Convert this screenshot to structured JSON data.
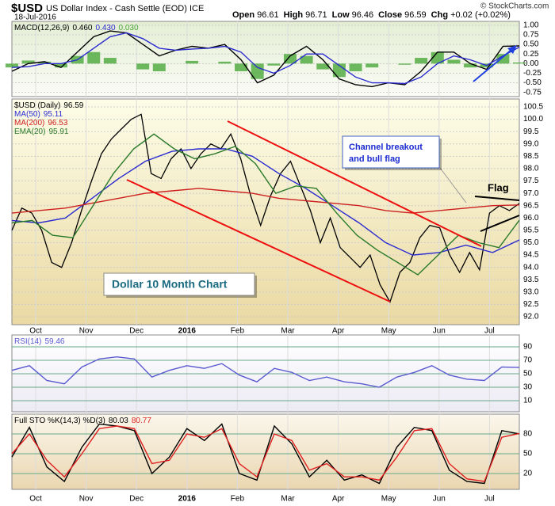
{
  "header": {
    "symbol": "$USD",
    "name": "US Dollar Index - Cash Settle (EOD) ICE",
    "date": "18-Jul-2016",
    "quote": [
      {
        "label": "Open",
        "value": "96.61"
      },
      {
        "label": "High",
        "value": "96.71"
      },
      {
        "label": "Low",
        "value": "96.46"
      },
      {
        "label": "Close",
        "value": "96.59"
      },
      {
        "label": "Chg",
        "value": "+0.02 (+0.02%)"
      }
    ],
    "logo": "© StockCharts.com"
  },
  "x_axis_labels": [
    "Oct",
    "Nov",
    "Dec",
    "2016",
    "Feb",
    "Mar",
    "Apr",
    "May",
    "Jun",
    "Jul"
  ],
  "annotations": {
    "breakout": [
      "Channel breakout",
      "and bull flag"
    ],
    "flag": "Flag",
    "chart_label": "Dollar 10 Month Chart"
  },
  "chart_data": [
    {
      "type": "line",
      "legend": "MACD(12,26,9)",
      "ylim": [
        -0.86,
        1.1
      ],
      "yticks": [
        {
          "value": 1,
          "label": "1.00"
        },
        0.75,
        {
          "value": 0.5,
          "label": "0.50"
        },
        0.25,
        {
          "value": 0,
          "label": "0.00"
        },
        -0.25,
        {
          "value": -0.5,
          "label": "-0.50"
        },
        -0.75
      ],
      "grid": true,
      "series": [
        {
          "name": "0.030",
          "color": "#4aa83a",
          "kind": "bar",
          "values": [
            -0.1,
            0.08,
            0.05,
            -0.1,
            0.2,
            0.3,
            0.15,
            0.0,
            -0.15,
            -0.2,
            0.0,
            0.07,
            0.0,
            0.05,
            -0.2,
            -0.4,
            -0.05,
            0.25,
            0.2,
            -0.15,
            -0.35,
            -0.2,
            -0.1,
            0.0,
            -0.03,
            0.15,
            0.3,
            0.1,
            -0.1,
            -0.1,
            0.25,
            0.03
          ]
        },
        {
          "name": "0.460",
          "color": "#000000",
          "kind": "line",
          "values": [
            -0.2,
            0.0,
            0.05,
            -0.1,
            0.3,
            0.7,
            0.85,
            0.8,
            0.5,
            0.2,
            0.35,
            0.45,
            0.4,
            0.5,
            0.1,
            -0.5,
            -0.3,
            0.2,
            0.45,
            0.1,
            -0.4,
            -0.55,
            -0.6,
            -0.5,
            -0.55,
            -0.2,
            0.3,
            0.3,
            0.0,
            -0.15,
            0.45,
            0.46
          ]
        },
        {
          "name": "0.430",
          "color": "#2b2bd0",
          "kind": "line",
          "values": [
            -0.1,
            -0.08,
            0.0,
            0.0,
            0.1,
            0.4,
            0.7,
            0.8,
            0.65,
            0.4,
            0.35,
            0.38,
            0.4,
            0.45,
            0.3,
            -0.1,
            -0.25,
            -0.05,
            0.25,
            0.25,
            -0.05,
            -0.35,
            -0.5,
            -0.5,
            -0.52,
            -0.35,
            0.0,
            0.2,
            0.1,
            -0.05,
            0.2,
            0.43
          ]
        }
      ]
    },
    {
      "type": "line",
      "ylim": [
        91.68,
        100.82
      ],
      "yticks": [
        100.5,
        {
          "value": 100,
          "label": "100.0"
        },
        99.5,
        {
          "value": 99,
          "label": "99.0"
        },
        98.5,
        {
          "value": 98,
          "label": "98.0"
        },
        97.5,
        {
          "value": 97,
          "label": "97.0"
        },
        96.5,
        {
          "value": 96,
          "label": "96.0"
        },
        95.5,
        {
          "value": 95,
          "label": "95.0"
        },
        94.5,
        {
          "value": 94,
          "label": "94.0"
        },
        93.5,
        {
          "value": 93,
          "label": "93.0"
        },
        92.5,
        {
          "value": 92,
          "label": "92.0"
        }
      ],
      "grid": true,
      "series": [
        {
          "name": "$USD (Daily)",
          "last": "96.59",
          "color": "#000000",
          "kind": "line",
          "values": [
            95.5,
            96.4,
            96.2,
            95.5,
            94.2,
            94.0,
            95.0,
            96.3,
            97.5,
            98.6,
            99.2,
            99.6,
            100.0,
            100.2,
            97.8,
            97.6,
            98.4,
            98.8,
            98.0,
            98.6,
            99.0,
            98.8,
            99.4,
            98.4,
            96.9,
            95.7,
            96.9,
            97.8,
            98.3,
            97.3,
            96.3,
            95.0,
            96.0,
            94.8,
            94.4,
            94.0,
            94.5,
            93.3,
            92.6,
            93.8,
            94.2,
            95.2,
            95.7,
            95.6,
            94.5,
            93.8,
            94.6,
            93.9,
            96.2,
            96.5,
            96.3,
            96.59
          ]
        },
        {
          "name": "MA(50)",
          "last": "95.11",
          "color": "#2b2bd0",
          "kind": "line",
          "values": [
            95.9,
            95.8,
            96.0,
            96.8,
            97.6,
            98.3,
            98.7,
            98.8,
            98.8,
            98.5,
            97.8,
            97.2,
            96.5,
            95.8,
            95.0,
            94.5,
            94.6,
            94.9,
            94.6,
            95.11
          ]
        },
        {
          "name": "MA(200)",
          "last": "96.53",
          "color": "#cc2020",
          "kind": "line",
          "values": [
            96.2,
            96.3,
            96.4,
            96.6,
            96.8,
            97.0,
            97.1,
            97.2,
            97.1,
            97.0,
            96.8,
            96.7,
            96.6,
            96.5,
            96.3,
            96.2,
            96.3,
            96.4,
            96.5,
            96.53
          ]
        },
        {
          "name": "EMA(20)",
          "last": "95.91",
          "color": "#2a7a2a",
          "kind": "line",
          "values": [
            95.8,
            95.9,
            95.3,
            95.2,
            96.5,
            97.8,
            98.8,
            99.4,
            98.8,
            98.4,
            98.6,
            98.9,
            98.2,
            97.0,
            97.3,
            97.2,
            96.2,
            95.3,
            94.7,
            94.2,
            93.7,
            94.5,
            95.3,
            95.0,
            94.8,
            95.91
          ]
        }
      ]
    },
    {
      "type": "line",
      "ylim": [
        -6.5,
        107.6
      ],
      "yticks": [
        90,
        70,
        50,
        30,
        10
      ],
      "grid": true,
      "series": [
        {
          "name": "RSI(14)",
          "last": "59.46",
          "color": "#5a5ad0",
          "kind": "line",
          "values": [
            55,
            62,
            40,
            35,
            60,
            72,
            75,
            72,
            45,
            55,
            62,
            58,
            65,
            48,
            38,
            58,
            52,
            40,
            45,
            38,
            35,
            30,
            45,
            52,
            62,
            48,
            42,
            40,
            60,
            59.46
          ]
        }
      ]
    },
    {
      "type": "line",
      "legend": "Full STO %K(14,3) %D(3)",
      "ylim": [
        -4,
        110
      ],
      "yticks": [
        80,
        50,
        20
      ],
      "grid": true,
      "series": [
        {
          "name": "80.03",
          "color": "#000000",
          "kind": "line",
          "values": [
            45,
            90,
            30,
            8,
            60,
            95,
            92,
            85,
            20,
            45,
            88,
            70,
            95,
            20,
            10,
            92,
            65,
            15,
            40,
            10,
            18,
            5,
            60,
            90,
            85,
            25,
            8,
            5,
            85,
            80.03
          ]
        },
        {
          "name": "80.77",
          "color": "#e02020",
          "kind": "line",
          "values": [
            50,
            80,
            40,
            15,
            50,
            88,
            92,
            88,
            35,
            40,
            80,
            75,
            88,
            35,
            15,
            80,
            70,
            25,
            35,
            15,
            15,
            10,
            45,
            85,
            88,
            35,
            12,
            8,
            75,
            80.77
          ]
        }
      ]
    }
  ]
}
